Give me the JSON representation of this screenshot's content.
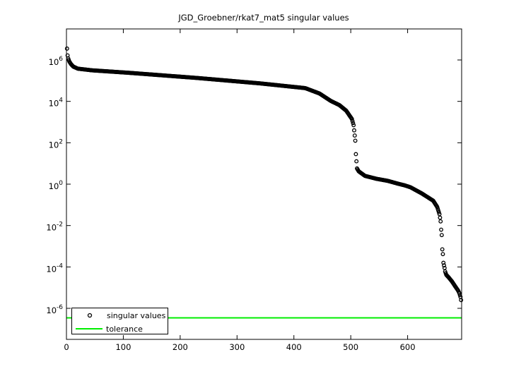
{
  "figure": {
    "background": "#ffffff",
    "axes_color": "#000000"
  },
  "chart_data": {
    "type": "scatter",
    "title": "JGD_Groebner/rkat7_mat5 singular values",
    "xlabel": "",
    "ylabel": "",
    "grid": false,
    "x_axis": {
      "min": 0,
      "max": 695,
      "ticks": [
        0,
        100,
        200,
        300,
        400,
        500,
        600
      ]
    },
    "y_axis": {
      "scale": "log10",
      "min_exp": -7.5,
      "max_exp": 7.5,
      "tick_exponents": [
        6,
        4,
        2,
        0,
        -2,
        -4,
        -6
      ],
      "tick_base": "10"
    },
    "series": [
      {
        "name": "singular values",
        "type": "scatter",
        "marker": "circle-open",
        "color": "#000000",
        "n_points": 694,
        "log10_breakpoints": [
          [
            1,
            6.55
          ],
          [
            2,
            6.22
          ],
          [
            3,
            6.08
          ],
          [
            5,
            5.93
          ],
          [
            8,
            5.8
          ],
          [
            12,
            5.68
          ],
          [
            20,
            5.58
          ],
          [
            45,
            5.5
          ],
          [
            110,
            5.38
          ],
          [
            230,
            5.13
          ],
          [
            340,
            4.87
          ],
          [
            420,
            4.64
          ],
          [
            445,
            4.38
          ],
          [
            465,
            4.02
          ],
          [
            480,
            3.82
          ],
          [
            492,
            3.55
          ],
          [
            502,
            3.15
          ],
          [
            505,
            2.85
          ],
          [
            506,
            2.6
          ],
          [
            508,
            2.1
          ],
          [
            509,
            1.45
          ],
          [
            511,
            0.76
          ],
          [
            514,
            0.62
          ],
          [
            525,
            0.4
          ],
          [
            545,
            0.26
          ],
          [
            565,
            0.16
          ],
          [
            582,
            0.03
          ],
          [
            595,
            -0.06
          ],
          [
            605,
            -0.15
          ],
          [
            625,
            -0.45
          ],
          [
            645,
            -0.8
          ],
          [
            652,
            -1.1
          ],
          [
            656,
            -1.45
          ],
          [
            657,
            -1.62
          ],
          [
            658,
            -1.8
          ],
          [
            659,
            -2.2
          ],
          [
            660,
            -2.46
          ],
          [
            661,
            -3.15
          ],
          [
            662,
            -3.38
          ],
          [
            663,
            -3.8
          ],
          [
            665,
            -4.05
          ],
          [
            666,
            -4.22
          ],
          [
            668,
            -4.38
          ],
          [
            672,
            -4.5
          ],
          [
            678,
            -4.7
          ],
          [
            684,
            -4.95
          ],
          [
            689,
            -5.15
          ],
          [
            691,
            -5.27
          ],
          [
            693,
            -5.45
          ],
          [
            694,
            -5.6
          ]
        ]
      },
      {
        "name": "tolerance",
        "type": "line",
        "color": "#00EE00",
        "value": 3.5e-07,
        "log10_value": -6.46
      }
    ],
    "legend": {
      "position": "bottom-left",
      "entries": [
        {
          "label": "singular values",
          "marker": "circle-open",
          "color": "#000000"
        },
        {
          "label": "tolerance",
          "marker": "line",
          "color": "#00EE00"
        }
      ]
    }
  }
}
